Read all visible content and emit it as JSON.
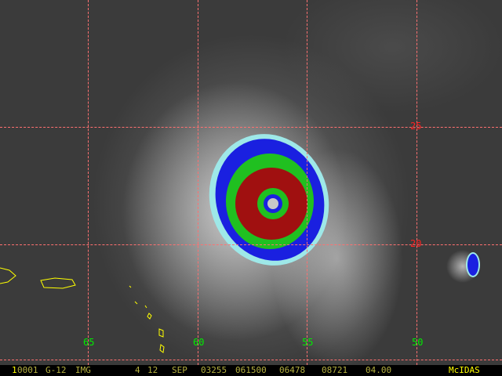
{
  "image": {
    "type": "infrared satellite imagery with enhancement",
    "colors": {
      "eye": "#c8c8c8",
      "red": "#a01010",
      "green": "#20c020",
      "blue": "#1020e0",
      "cyan": "#a0f0f0",
      "coastline": "#ffff00",
      "grid": "#ff7070"
    }
  },
  "grid": {
    "latitudes": [
      {
        "label": "25"
      },
      {
        "label": "20"
      }
    ],
    "longitudes": [
      {
        "label": "65"
      },
      {
        "label": "60"
      },
      {
        "label": "55"
      },
      {
        "label": "50"
      }
    ]
  },
  "status_bar": {
    "frame": "1",
    "fields": [
      "0001",
      "G-12",
      "IMG",
      "4",
      "12",
      "SEP",
      "03255",
      "061500",
      "06478",
      "08721",
      "04.00"
    ],
    "brand": "McIDAS"
  }
}
